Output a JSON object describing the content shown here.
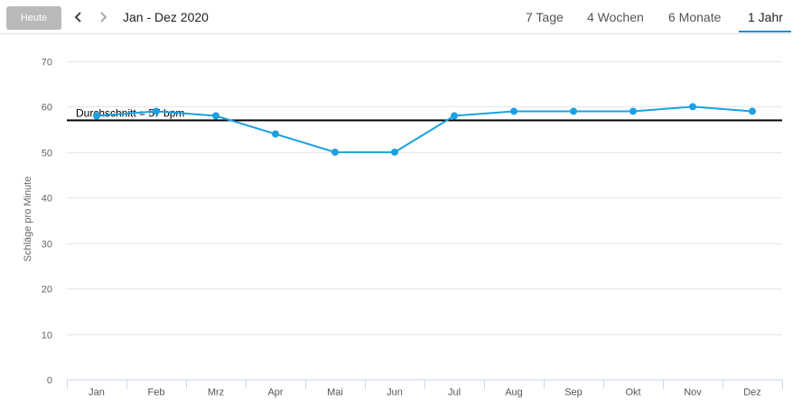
{
  "toolbar": {
    "today_label": "Heute",
    "period_label": "Jan - Dez 2020",
    "tabs": [
      {
        "label": "7 Tage"
      },
      {
        "label": "4 Wochen"
      },
      {
        "label": "6 Monate"
      },
      {
        "label": "1 Jahr"
      }
    ],
    "active_tab": "1 Jahr",
    "accent_color": "#1c8fd1"
  },
  "chart_data": {
    "type": "line",
    "title": "",
    "xlabel": "",
    "ylabel": "Schläge pro Minute",
    "categories": [
      "Jan",
      "Feb",
      "Mrz",
      "Apr",
      "Mai",
      "Jun",
      "Jul",
      "Aug",
      "Sep",
      "Okt",
      "Nov",
      "Dez"
    ],
    "series": [
      {
        "values": [
          58,
          59,
          58,
          54,
          50,
          50,
          58,
          59,
          59,
          59,
          60,
          59
        ],
        "color": "#1ba1e2"
      }
    ],
    "ylim": [
      0,
      70
    ],
    "yticks": [
      0,
      10,
      20,
      30,
      40,
      50,
      60,
      70
    ],
    "grid": true,
    "average": {
      "value": 57,
      "label": "Durchschnitt = 57 bpm",
      "color": "#000000"
    }
  }
}
